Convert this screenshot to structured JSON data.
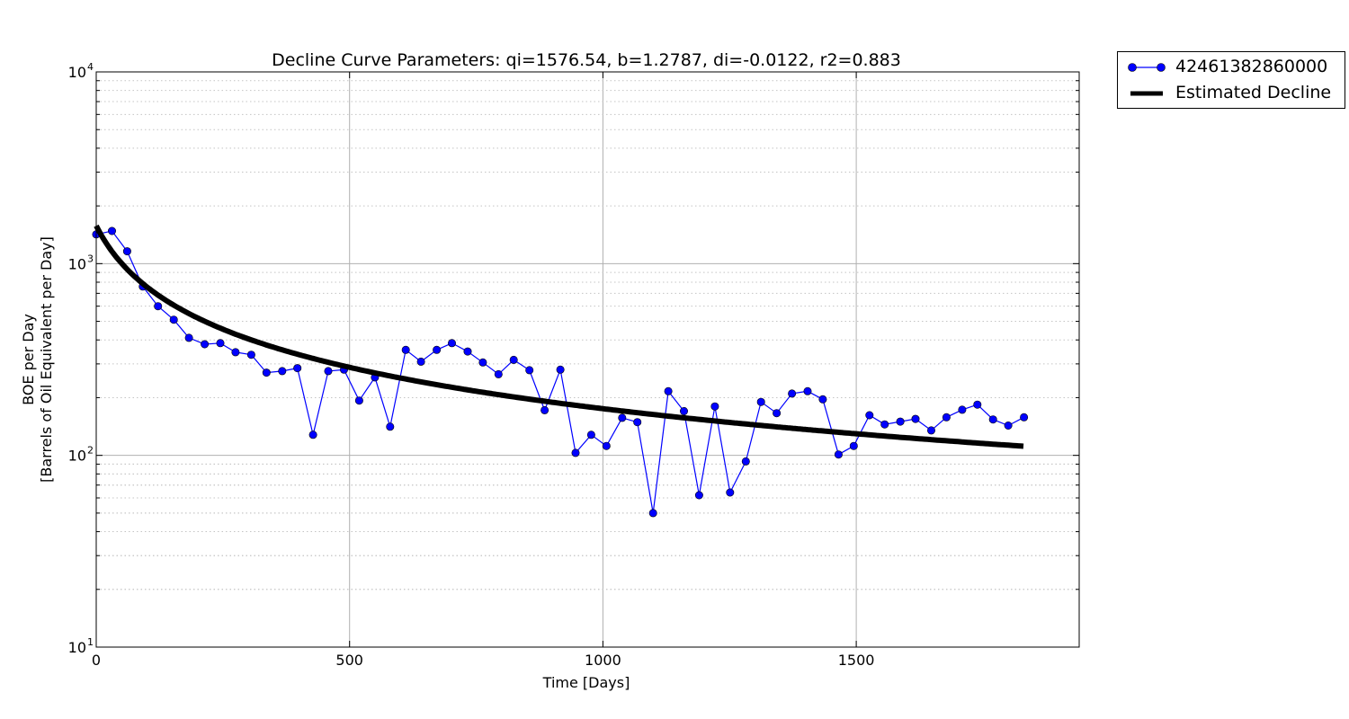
{
  "chart_data": {
    "type": "line",
    "title": "Decline Curve Parameters: qi=1576.54, b=1.2787, di=-0.0122, r2=0.883",
    "xlabel": "Time [Days]",
    "ylabel_line1": "BOE per Day",
    "ylabel_line2": "[Barrels of Oil Equivalent per Day]",
    "xlim": [
      0,
      1940
    ],
    "ylim": [
      10,
      10000
    ],
    "yscale": "log",
    "grid": true,
    "legend_position": "outside-top-right",
    "x_ticks": [
      {
        "value": 0,
        "label": "0"
      },
      {
        "value": 500,
        "label": "500"
      },
      {
        "value": 1000,
        "label": "1000"
      },
      {
        "value": 1500,
        "label": "1500"
      }
    ],
    "y_ticks": [
      {
        "value": 10,
        "base": "10",
        "exp": "1"
      },
      {
        "value": 100,
        "base": "10",
        "exp": "2"
      },
      {
        "value": 1000,
        "base": "10",
        "exp": "3"
      },
      {
        "value": 10000,
        "base": "10",
        "exp": "4"
      }
    ],
    "series": [
      {
        "name": "42461382860000",
        "color": "#0000ff",
        "style": "line-with-markers",
        "x": [
          0,
          31,
          61,
          92,
          122,
          153,
          183,
          214,
          245,
          275,
          306,
          336,
          367,
          397,
          428,
          458,
          489,
          519,
          550,
          580,
          611,
          641,
          672,
          702,
          733,
          763,
          794,
          824,
          855,
          885,
          916,
          946,
          977,
          1007,
          1038,
          1068,
          1099,
          1129,
          1160,
          1190,
          1221,
          1251,
          1282,
          1312,
          1343,
          1373,
          1404,
          1434,
          1465,
          1495,
          1526,
          1556,
          1587,
          1617,
          1648,
          1678,
          1709,
          1739,
          1770,
          1800,
          1831
        ],
        "y": [
          1420,
          1480,
          1160,
          760,
          600,
          510,
          410,
          380,
          385,
          345,
          335,
          270,
          275,
          285,
          128,
          275,
          280,
          193,
          255,
          141,
          355,
          308,
          355,
          385,
          348,
          305,
          265,
          315,
          278,
          172,
          280,
          103,
          128,
          112,
          157,
          149,
          50,
          216,
          170,
          62,
          180,
          64,
          93,
          190,
          166,
          210,
          216,
          196,
          101,
          112,
          162,
          145,
          150,
          155,
          135,
          158,
          173,
          184,
          154,
          143,
          158
        ]
      },
      {
        "name": "Estimated Decline",
        "color": "#000000",
        "style": "thick-line",
        "model": {
          "qi": 1576.54,
          "b": 1.2787,
          "di": 0.0122,
          "x_start": 0,
          "x_end": 1831
        }
      }
    ]
  }
}
